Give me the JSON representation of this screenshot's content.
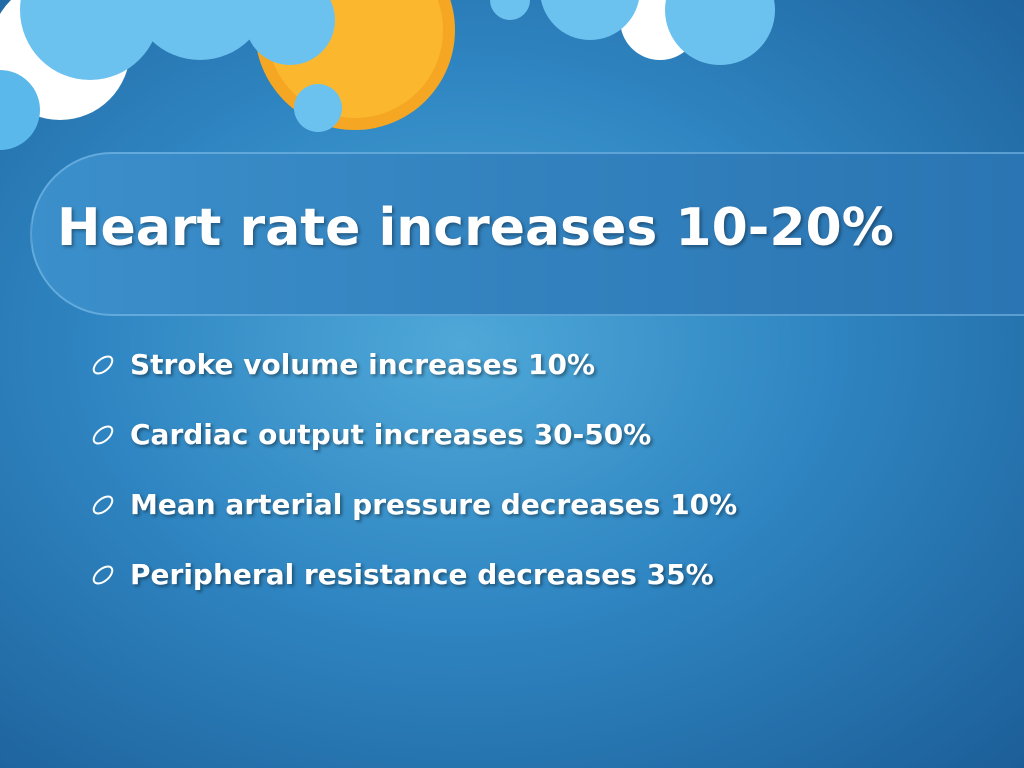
{
  "slide": {
    "title": "Heart rate increases 10-20%",
    "bullets": [
      "Stroke volume increases 10%",
      "Cardiac output increases 30-50%",
      "Mean arterial pressure decreases 10%",
      "Peripheral resistance decreases 35%"
    ]
  }
}
